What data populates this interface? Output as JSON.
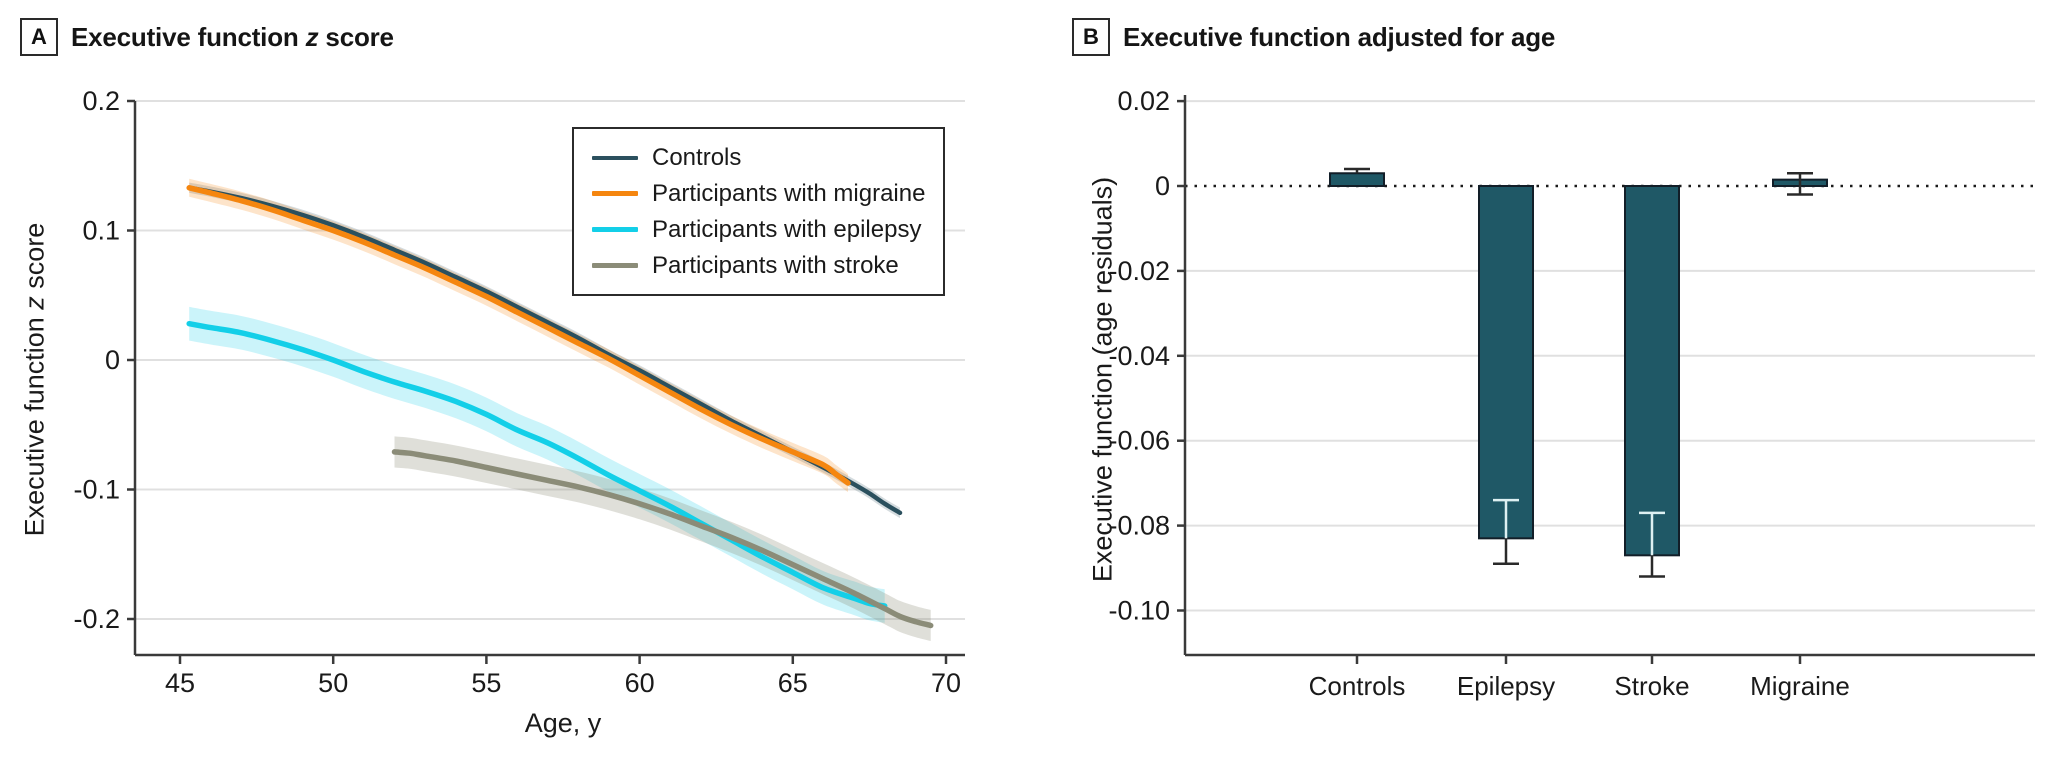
{
  "figure": {
    "panel_a": {
      "letter": "A",
      "title_plain": "Executive function z score",
      "title_parts": [
        {
          "text": "Executive function ",
          "italic": false
        },
        {
          "text": "z",
          "italic": true
        },
        {
          "text": " score",
          "italic": false
        }
      ],
      "ylabel_parts": [
        {
          "text": "Executive function ",
          "italic": false
        },
        {
          "text": "z",
          "italic": true
        },
        {
          "text": " score",
          "italic": false
        }
      ],
      "xlabel": "Age, y"
    },
    "panel_b": {
      "letter": "B",
      "title": "Executive function adjusted for age",
      "ylabel": "Executive function (age residuals)"
    },
    "colors": {
      "controls": "#2b505e",
      "migraine": "#f5860f",
      "epilepsy": "#13cfe8",
      "stroke": "#8b8c78",
      "band_controls": "rgba(43,80,94,0.20)",
      "band_migraine": "rgba(245,134,15,0.22)",
      "band_epilepsy": "rgba(19,207,232,0.22)",
      "band_stroke": "rgba(139,140,120,0.28)",
      "bar_fill": "#1f5866",
      "bar_stroke": "#121e28",
      "whisker_dark": "#2a2a2a",
      "whisker_light": "#ddf0f2",
      "grid": "#e0e0e0",
      "axis": "#3a3a3a",
      "zero_dotted": "#1a1a1a"
    }
  },
  "chart_data": [
    {
      "type": "line",
      "title": "Executive function z score",
      "xlabel": "Age, y",
      "ylabel": "Executive function z score",
      "xlim": [
        43.5,
        70
      ],
      "ylim": [
        -0.25,
        0.2
      ],
      "xticks": [
        45,
        50,
        55,
        60,
        65,
        70
      ],
      "yticks": [
        0.2,
        0.1,
        0,
        -0.1,
        -0.2
      ],
      "yticklabels": [
        "0.2",
        "0.1",
        "0",
        "-0.1",
        "-0.2"
      ],
      "grid": "horizontal",
      "legend_position": "top-right",
      "series": [
        {
          "name": "Controls",
          "key": "controls",
          "ci_halfwidth": 0.004,
          "line_width": 4.5,
          "points": [
            [
              45.3,
              0.133
            ],
            [
              46,
              0.13
            ],
            [
              47,
              0.125
            ],
            [
              48,
              0.119
            ],
            [
              49,
              0.112
            ],
            [
              50,
              0.104
            ],
            [
              51,
              0.095
            ],
            [
              52,
              0.085
            ],
            [
              53,
              0.075
            ],
            [
              54,
              0.064
            ],
            [
              55,
              0.053
            ],
            [
              56,
              0.041
            ],
            [
              57,
              0.029
            ],
            [
              58,
              0.017
            ],
            [
              59,
              0.004
            ],
            [
              60,
              -0.008
            ],
            [
              61,
              -0.021
            ],
            [
              62,
              -0.034
            ],
            [
              63,
              -0.047
            ],
            [
              64,
              -0.059
            ],
            [
              65,
              -0.071
            ],
            [
              66,
              -0.083
            ],
            [
              67,
              -0.096
            ],
            [
              67.5,
              -0.103
            ],
            [
              68,
              -0.111
            ],
            [
              68.5,
              -0.118
            ]
          ]
        },
        {
          "name": "Participants with migraine",
          "key": "migraine",
          "ci_halfwidth": 0.007,
          "line_width": 5.5,
          "points": [
            [
              45.3,
              0.133
            ],
            [
              46,
              0.129
            ],
            [
              47,
              0.123
            ],
            [
              48,
              0.116
            ],
            [
              49,
              0.108
            ],
            [
              50,
              0.1
            ],
            [
              51,
              0.091
            ],
            [
              52,
              0.081
            ],
            [
              53,
              0.071
            ],
            [
              54,
              0.06
            ],
            [
              55,
              0.049
            ],
            [
              56,
              0.037
            ],
            [
              57,
              0.025
            ],
            [
              58,
              0.013
            ],
            [
              59,
              0.001
            ],
            [
              60,
              -0.012
            ],
            [
              61,
              -0.025
            ],
            [
              62,
              -0.038
            ],
            [
              63,
              -0.05
            ],
            [
              64,
              -0.061
            ],
            [
              65,
              -0.071
            ],
            [
              66,
              -0.081
            ],
            [
              66.4,
              -0.088
            ],
            [
              66.8,
              -0.095
            ]
          ]
        },
        {
          "name": "Participants with epilepsy",
          "key": "epilepsy",
          "ci_halfwidth": 0.013,
          "line_width": 5.5,
          "points": [
            [
              45.3,
              0.028
            ],
            [
              46,
              0.025
            ],
            [
              47,
              0.021
            ],
            [
              48,
              0.015
            ],
            [
              49,
              0.008
            ],
            [
              50,
              0.0
            ],
            [
              51,
              -0.009
            ],
            [
              52,
              -0.017
            ],
            [
              53,
              -0.024
            ],
            [
              54,
              -0.032
            ],
            [
              55,
              -0.042
            ],
            [
              56,
              -0.054
            ],
            [
              57,
              -0.064
            ],
            [
              58,
              -0.076
            ],
            [
              59,
              -0.089
            ],
            [
              60,
              -0.101
            ],
            [
              61,
              -0.113
            ],
            [
              62,
              -0.126
            ],
            [
              63,
              -0.139
            ],
            [
              64,
              -0.152
            ],
            [
              65,
              -0.164
            ],
            [
              66,
              -0.176
            ],
            [
              67,
              -0.184
            ],
            [
              67.5,
              -0.188
            ],
            [
              68,
              -0.19
            ]
          ]
        },
        {
          "name": "Participants with stroke",
          "key": "stroke",
          "ci_halfwidth": 0.012,
          "line_width": 5.5,
          "points": [
            [
              52,
              -0.071
            ],
            [
              52.5,
              -0.072
            ],
            [
              53,
              -0.074
            ],
            [
              54,
              -0.078
            ],
            [
              55,
              -0.083
            ],
            [
              56,
              -0.088
            ],
            [
              57,
              -0.093
            ],
            [
              58,
              -0.098
            ],
            [
              59,
              -0.104
            ],
            [
              60,
              -0.111
            ],
            [
              61,
              -0.119
            ],
            [
              62,
              -0.128
            ],
            [
              63,
              -0.137
            ],
            [
              64,
              -0.147
            ],
            [
              65,
              -0.158
            ],
            [
              66,
              -0.169
            ],
            [
              67,
              -0.18
            ],
            [
              68,
              -0.192
            ],
            [
              68.5,
              -0.198
            ],
            [
              69,
              -0.202
            ],
            [
              69.5,
              -0.205
            ]
          ]
        }
      ]
    },
    {
      "type": "bar",
      "title": "Executive function adjusted for age",
      "xlabel": "",
      "ylabel": "Executive function (age residuals)",
      "categories": [
        "Controls",
        "Epilepsy",
        "Stroke",
        "Migraine"
      ],
      "values": [
        0.003,
        -0.083,
        -0.087,
        0.0015
      ],
      "ci_low": [
        0.001,
        -0.089,
        -0.092,
        -0.002
      ],
      "ci_high": [
        0.004,
        -0.074,
        -0.077,
        0.003
      ],
      "yticks": [
        0.02,
        0,
        -0.02,
        -0.04,
        -0.06,
        -0.08,
        -0.1
      ],
      "yticklabels": [
        "0.02",
        "0",
        "-0.02",
        "-0.04",
        "-0.06",
        "-0.08",
        "-0.10"
      ],
      "ylim": [
        -0.115,
        0.025
      ],
      "grid": "horizontal",
      "zero_line": "dotted"
    }
  ]
}
